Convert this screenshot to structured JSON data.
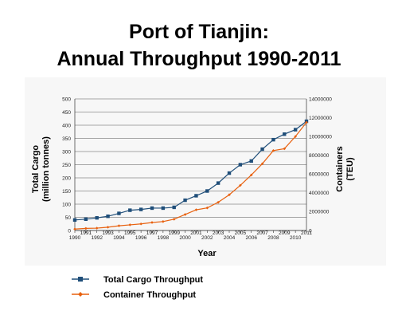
{
  "chart_data": {
    "type": "line",
    "title_lines": [
      "Port of Tianjin:",
      "Annual Throughput 1990-2011"
    ],
    "xlabel": "Year",
    "ylabel_left_lines": [
      "Total Cargo",
      "(million tonnes)"
    ],
    "ylabel_right_lines": [
      "Containers",
      "(TEU)"
    ],
    "x": [
      1990,
      1991,
      1992,
      1993,
      1994,
      1995,
      1996,
      1997,
      1998,
      1999,
      2000,
      2001,
      2002,
      2003,
      2004,
      2005,
      2006,
      2007,
      2008,
      2009,
      2010,
      2011
    ],
    "x_tick_labels": [
      "1990",
      "1991",
      "1992",
      "1993",
      "1994",
      "1995",
      "1996",
      "1997",
      "1998",
      "1999",
      "2000",
      "2001",
      "2002",
      "2003",
      "2004",
      "2005",
      "2006",
      "2007",
      "2008",
      "2009",
      "2010",
      "2011"
    ],
    "ylim_left": [
      0,
      500
    ],
    "yticks_left": [
      0,
      50,
      100,
      150,
      200,
      250,
      300,
      350,
      400,
      450,
      500
    ],
    "ylim_right": [
      0,
      14000000
    ],
    "yticks_right": [
      0,
      2000000,
      4000000,
      6000000,
      8000000,
      10000000,
      12000000,
      14000000
    ],
    "grid": "horizontal",
    "legend_position": "bottom-left",
    "series": [
      {
        "name": "Total Cargo Throughput",
        "axis": "left",
        "color": "#1f4e79",
        "marker": "square",
        "values": [
          40,
          43,
          48,
          54,
          65,
          77,
          80,
          85,
          85,
          88,
          115,
          132,
          150,
          180,
          218,
          250,
          264,
          309,
          345,
          366,
          383,
          415
        ]
      },
      {
        "name": "Container Throughput",
        "axis": "right",
        "color": "#e8610f",
        "marker": "diamond",
        "values": [
          150000,
          220000,
          250000,
          350000,
          500000,
          600000,
          700000,
          850000,
          950000,
          1200000,
          1700000,
          2200000,
          2400000,
          3000000,
          3800000,
          4800000,
          5900000,
          7100000,
          8500000,
          8700000,
          10000000,
          11500000
        ]
      }
    ]
  }
}
